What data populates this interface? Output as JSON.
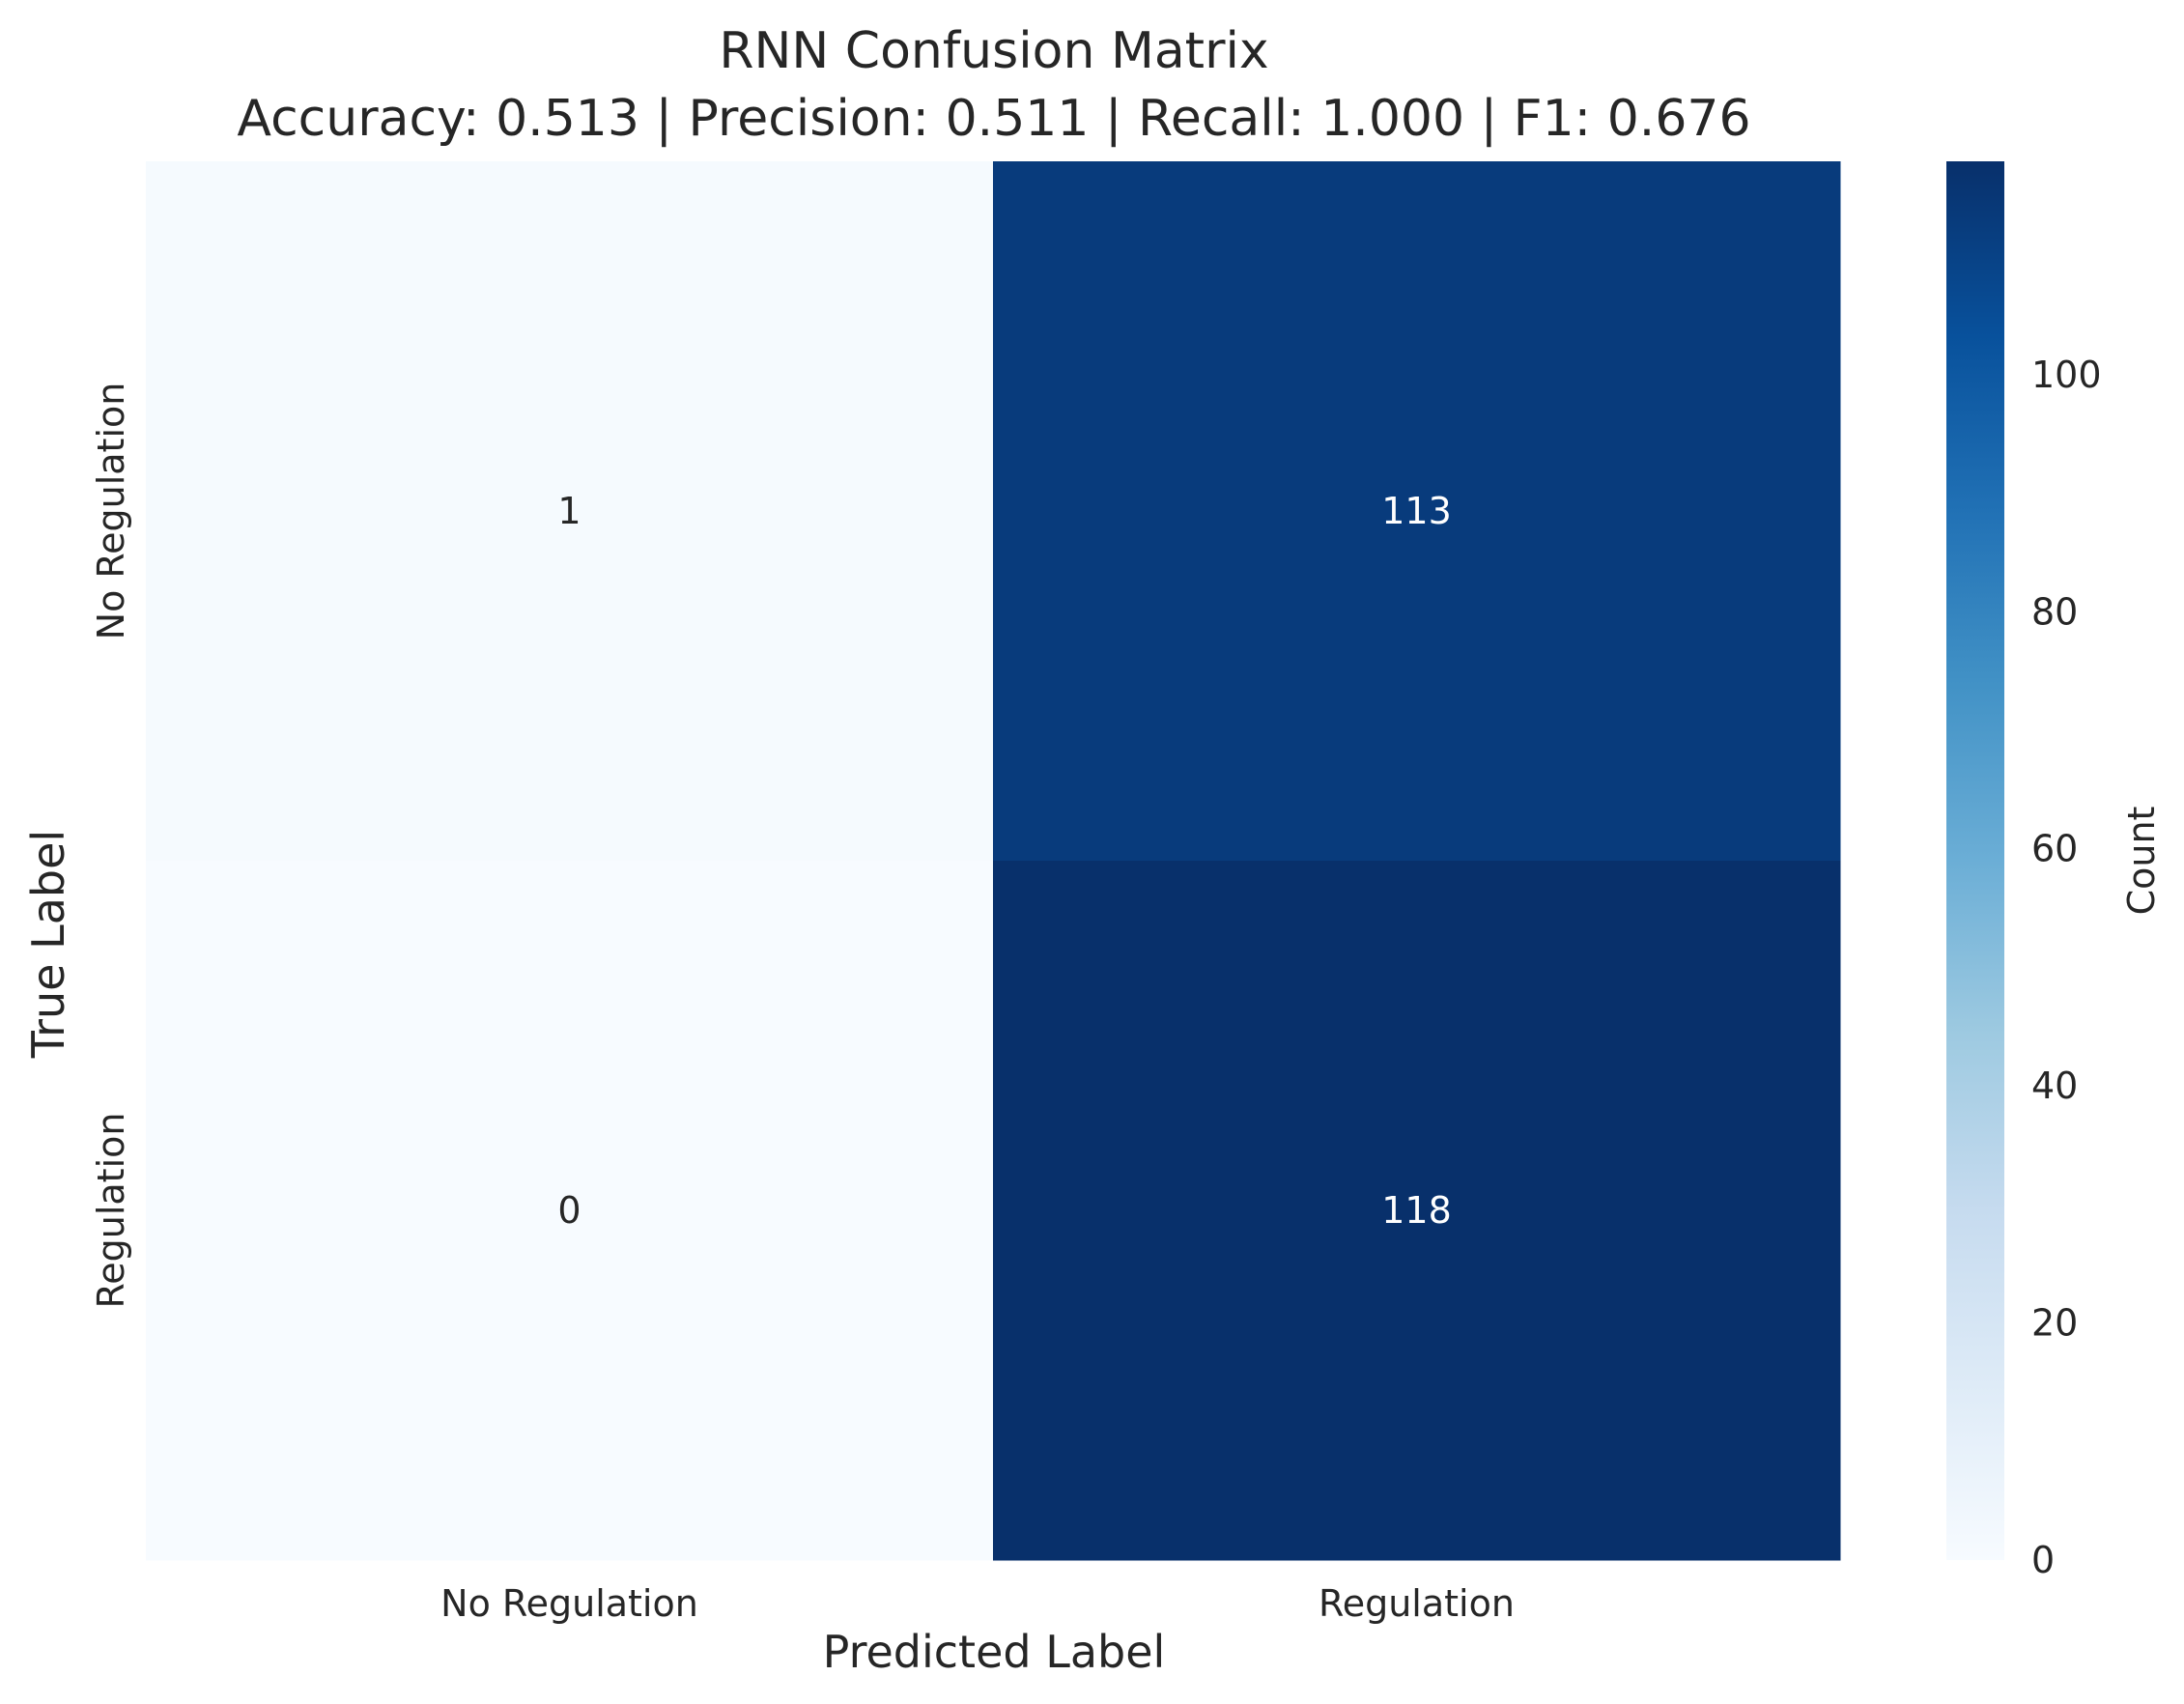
{
  "chart_data": {
    "type": "heatmap",
    "title": "RNN Confusion Matrix",
    "subtitle": "Accuracy: 0.513 | Precision: 0.511 | Recall: 1.000 | F1: 0.676",
    "xlabel": "Predicted Label",
    "ylabel": "True Label",
    "x_categories": [
      "No Regulation",
      "Regulation"
    ],
    "y_categories": [
      "No Regulation",
      "Regulation"
    ],
    "values": [
      [
        1,
        113
      ],
      [
        0,
        118
      ]
    ],
    "colormap": "Blues",
    "colorbar": {
      "label": "Count",
      "range": [
        0,
        118
      ],
      "ticks": [
        0,
        20,
        40,
        60,
        80,
        100
      ]
    }
  }
}
